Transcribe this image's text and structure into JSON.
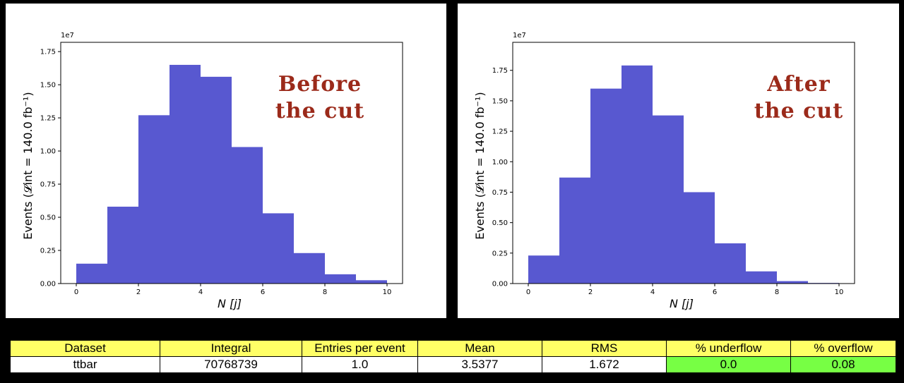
{
  "chart_data": [
    {
      "type": "bar",
      "x": [
        0,
        1,
        2,
        3,
        4,
        5,
        6,
        7,
        8,
        9
      ],
      "bin_edges": [
        0,
        1,
        2,
        3,
        4,
        5,
        6,
        7,
        8,
        9,
        10
      ],
      "values": [
        0.15,
        0.58,
        1.27,
        1.65,
        1.56,
        1.03,
        0.53,
        0.23,
        0.07,
        0.025
      ],
      "xticks": [
        "0",
        "2",
        "4",
        "6",
        "8",
        "10"
      ],
      "yticks": [
        "0.00",
        "0.25",
        "0.50",
        "0.75",
        "1.00",
        "1.25",
        "1.50",
        "1.75"
      ],
      "xlim": [
        -0.5,
        10.5
      ],
      "ylim": [
        0,
        1.82
      ],
      "scale": "1e7",
      "xlabel": "N [j]",
      "ylabel": "Events (𝓛int = 140.0 fb⁻¹)",
      "annotation": [
        "Before",
        "the cut"
      ],
      "color": "#5858d0"
    },
    {
      "type": "bar",
      "x": [
        0,
        1,
        2,
        3,
        4,
        5,
        6,
        7,
        8,
        9
      ],
      "bin_edges": [
        0,
        1,
        2,
        3,
        4,
        5,
        6,
        7,
        8,
        9,
        10
      ],
      "values": [
        0.23,
        0.87,
        1.6,
        1.79,
        1.38,
        0.75,
        0.33,
        0.1,
        0.02,
        0.005
      ],
      "xticks": [
        "0",
        "2",
        "4",
        "6",
        "8",
        "10"
      ],
      "yticks": [
        "0.00",
        "0.25",
        "0.50",
        "0.75",
        "1.00",
        "1.25",
        "1.50",
        "1.75"
      ],
      "xlim": [
        -0.5,
        10.5
      ],
      "ylim": [
        0,
        1.98
      ],
      "scale": "1e7",
      "xlabel": "N [j]",
      "ylabel": "Events (𝓛int = 140.0 fb⁻¹)",
      "annotation": [
        "After",
        "the cut"
      ],
      "color": "#5858d0"
    }
  ],
  "stats_table": {
    "headers": [
      "Dataset",
      "Integral",
      "Entries per event",
      "Mean",
      "RMS",
      "% underflow",
      "% overflow"
    ],
    "row": [
      "ttbar",
      "70768739",
      "1.0",
      "3.5377",
      "1.672",
      "0.0",
      "0.08"
    ],
    "header_color": "#ffff66",
    "highlight_color": "#77ff44"
  }
}
